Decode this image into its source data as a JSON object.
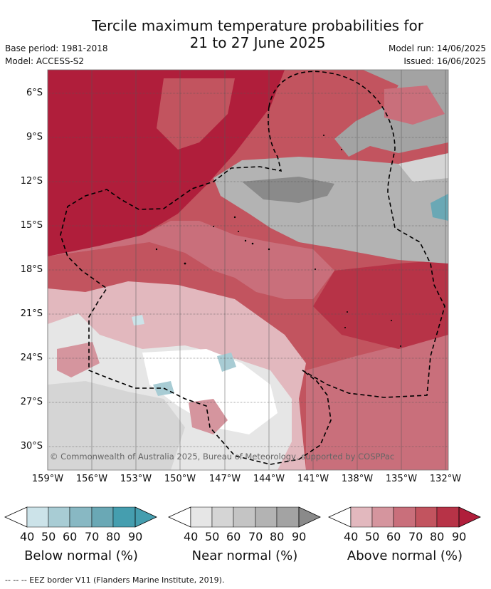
{
  "title_line1": "Tercile maximum temperature probabilities for",
  "title_line2": "21 to 27 June 2025",
  "base_period": "Base period: 1981-2018",
  "model": "Model: ACCESS-S2",
  "model_run": "Model run: 14/06/2025",
  "issued": "Issued: 16/06/2025",
  "copyright": "© Commonwealth of Australia 2025, Bureau of Meteorology, supported by COSPPac",
  "lat_labels": [
    "6°S",
    "9°S",
    "12°S",
    "15°S",
    "18°S",
    "21°S",
    "24°S",
    "27°S",
    "30°S"
  ],
  "lon_labels": [
    "159°W",
    "156°W",
    "153°W",
    "150°W",
    "147°W",
    "144°W",
    "141°W",
    "138°W",
    "135°W",
    "132°W"
  ],
  "colorbars": [
    {
      "title": "Below normal (%)",
      "ticks": [
        "40",
        "50",
        "60",
        "70",
        "80",
        "90"
      ],
      "colors": [
        "#ffffff",
        "#cce3e9",
        "#a8ccd4",
        "#88b8c3",
        "#6aa8b5",
        "#459eaf"
      ]
    },
    {
      "title": "Near normal (%)",
      "ticks": [
        "40",
        "50",
        "60",
        "70",
        "80",
        "90"
      ],
      "colors": [
        "#ffffff",
        "#e6e6e6",
        "#d5d5d5",
        "#c4c4c4",
        "#b3b3b3",
        "#a3a3a3",
        "#8a8a8a"
      ]
    },
    {
      "title": "Above normal (%)",
      "ticks": [
        "40",
        "50",
        "60",
        "70",
        "80",
        "90"
      ],
      "colors": [
        "#ffffff",
        "#e2b8be",
        "#d5959e",
        "#c96f7b",
        "#c2545f",
        "#b73347",
        "#b01e3b"
      ]
    }
  ],
  "footnote": "-- -- -- EEZ border V11 (Flanders Marine Institute, 2019)."
}
